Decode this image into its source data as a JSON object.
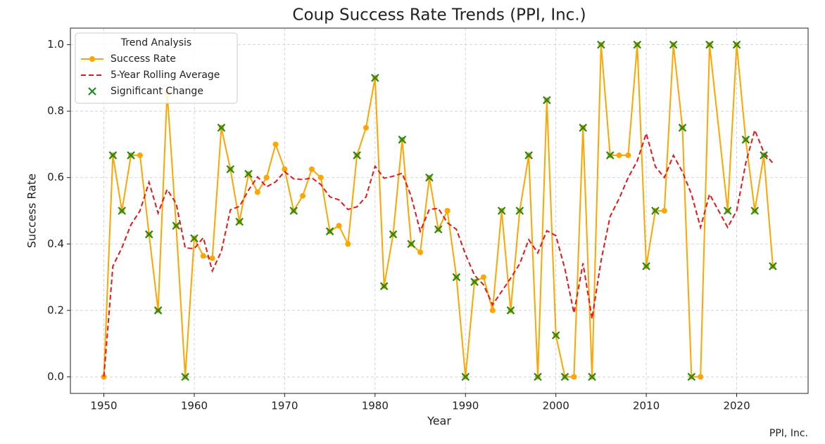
{
  "chart_data": {
    "type": "line",
    "title": "Coup Success Rate Trends (PPI, Inc.)",
    "xlabel": "Year",
    "ylabel": "Success Rate",
    "source": "PPI, Inc.",
    "legend_title": "Trend Analysis",
    "legend_position": "upper left",
    "grid": true,
    "xlim": [
      1946.3,
      2027.9
    ],
    "ylim": [
      -0.05,
      1.05
    ],
    "xticks": [
      1950,
      1960,
      1970,
      1980,
      1990,
      2000,
      2010,
      2020
    ],
    "yticks": [
      {
        "value": 0,
        "label": "0.0"
      },
      0.2,
      0.4,
      0.6,
      0.8,
      {
        "value": 1,
        "label": "1.0"
      }
    ],
    "series": [
      {
        "name": "Success Rate",
        "color": "#ffa500",
        "style": "solid-marker",
        "x": [
          1950,
          1951,
          1952,
          1953,
          1954,
          1955,
          1956,
          1957,
          1958,
          1959,
          1960,
          1961,
          1962,
          1963,
          1964,
          1965,
          1966,
          1967,
          1968,
          1969,
          1970,
          1971,
          1972,
          1973,
          1974,
          1975,
          1976,
          1977,
          1978,
          1979,
          1980,
          1981,
          1982,
          1983,
          1984,
          1985,
          1986,
          1987,
          1988,
          1989,
          1990,
          1991,
          1992,
          1993,
          1994,
          1995,
          1996,
          1997,
          1998,
          1999,
          2000,
          2001,
          2002,
          2003,
          2004,
          2005,
          2006,
          2007,
          2008,
          2009,
          2010,
          2011,
          2012,
          2013,
          2014,
          2015,
          2016,
          2017,
          2019,
          2020,
          2021,
          2022,
          2023,
          2024
        ],
        "values": [
          0,
          0.667,
          0.5,
          0.667,
          0.667,
          0.429,
          0.2,
          0.857,
          0.455,
          0,
          0.417,
          0.364,
          0.357,
          0.75,
          0.625,
          0.467,
          0.611,
          0.556,
          0.6,
          0.7,
          0.625,
          0.5,
          0.545,
          0.625,
          0.6,
          0.438,
          0.455,
          0.4,
          0.667,
          0.75,
          0.9,
          0.273,
          0.429,
          0.714,
          0.4,
          0.375,
          0.6,
          0.444,
          0.5,
          0.3,
          0,
          0.286,
          0.3,
          0.2,
          0.5,
          0.2,
          0.5,
          0.667,
          0,
          0.833,
          0.125,
          0,
          0,
          0.75,
          0,
          1,
          0.667,
          0.667,
          0.667,
          1,
          0.333,
          0.5,
          0.5,
          1,
          0.75,
          0,
          0,
          1,
          0.5,
          1,
          0.714,
          0.5,
          0.667,
          0.333
        ]
      },
      {
        "name": "5-Year Rolling Average",
        "color": "#e8161b",
        "style": "dashed",
        "x": [
          1950,
          1951,
          1952,
          1953,
          1954,
          1955,
          1956,
          1957,
          1958,
          1959,
          1960,
          1961,
          1962,
          1963,
          1964,
          1965,
          1966,
          1967,
          1968,
          1969,
          1970,
          1971,
          1972,
          1973,
          1974,
          1975,
          1976,
          1977,
          1978,
          1979,
          1980,
          1981,
          1982,
          1983,
          1984,
          1985,
          1986,
          1987,
          1988,
          1989,
          1990,
          1991,
          1992,
          1993,
          1994,
          1995,
          1996,
          1997,
          1998,
          1999,
          2000,
          2001,
          2002,
          2003,
          2004,
          2005,
          2006,
          2007,
          2008,
          2009,
          2010,
          2011,
          2012,
          2013,
          2014,
          2015,
          2016,
          2017,
          2019,
          2020,
          2021,
          2022,
          2023,
          2024
        ],
        "values": [
          0,
          0.333,
          0.389,
          0.458,
          0.5,
          0.586,
          0.493,
          0.564,
          0.522,
          0.388,
          0.386,
          0.419,
          0.319,
          0.378,
          0.503,
          0.513,
          0.562,
          0.602,
          0.572,
          0.587,
          0.618,
          0.596,
          0.594,
          0.599,
          0.579,
          0.542,
          0.533,
          0.504,
          0.512,
          0.542,
          0.634,
          0.598,
          0.604,
          0.613,
          0.543,
          0.438,
          0.504,
          0.507,
          0.464,
          0.444,
          0.369,
          0.306,
          0.277,
          0.217,
          0.257,
          0.297,
          0.34,
          0.413,
          0.373,
          0.44,
          0.425,
          0.325,
          0.192,
          0.342,
          0.175,
          0.35,
          0.483,
          0.537,
          0.6,
          0.65,
          0.733,
          0.633,
          0.6,
          0.667,
          0.617,
          0.55,
          0.45,
          0.55,
          0.45,
          0.5,
          0.643,
          0.743,
          0.676,
          0.643
        ]
      },
      {
        "name": "Significant Change",
        "color": "#1f8a1f",
        "style": "x-marker",
        "x": [
          1951,
          1952,
          1953,
          1955,
          1956,
          1958,
          1959,
          1960,
          1963,
          1964,
          1965,
          1966,
          1971,
          1975,
          1978,
          1980,
          1981,
          1982,
          1983,
          1984,
          1986,
          1987,
          1989,
          1990,
          1991,
          1994,
          1995,
          1996,
          1997,
          1998,
          1999,
          2000,
          2001,
          2003,
          2004,
          2005,
          2006,
          2009,
          2010,
          2011,
          2013,
          2014,
          2015,
          2017,
          2019,
          2020,
          2021,
          2022,
          2023,
          2024
        ],
        "values": [
          0.667,
          0.5,
          0.667,
          0.429,
          0.2,
          0.455,
          0,
          0.417,
          0.75,
          0.625,
          0.467,
          0.611,
          0.5,
          0.438,
          0.667,
          0.9,
          0.273,
          0.429,
          0.714,
          0.4,
          0.6,
          0.444,
          0.3,
          0,
          0.286,
          0.5,
          0.2,
          0.5,
          0.667,
          0,
          0.833,
          0.125,
          0,
          0.75,
          0,
          1,
          0.667,
          1,
          0.333,
          0.5,
          1,
          0.75,
          0,
          1,
          0.5,
          1,
          0.714,
          0.5,
          0.667,
          0.333
        ]
      }
    ]
  }
}
